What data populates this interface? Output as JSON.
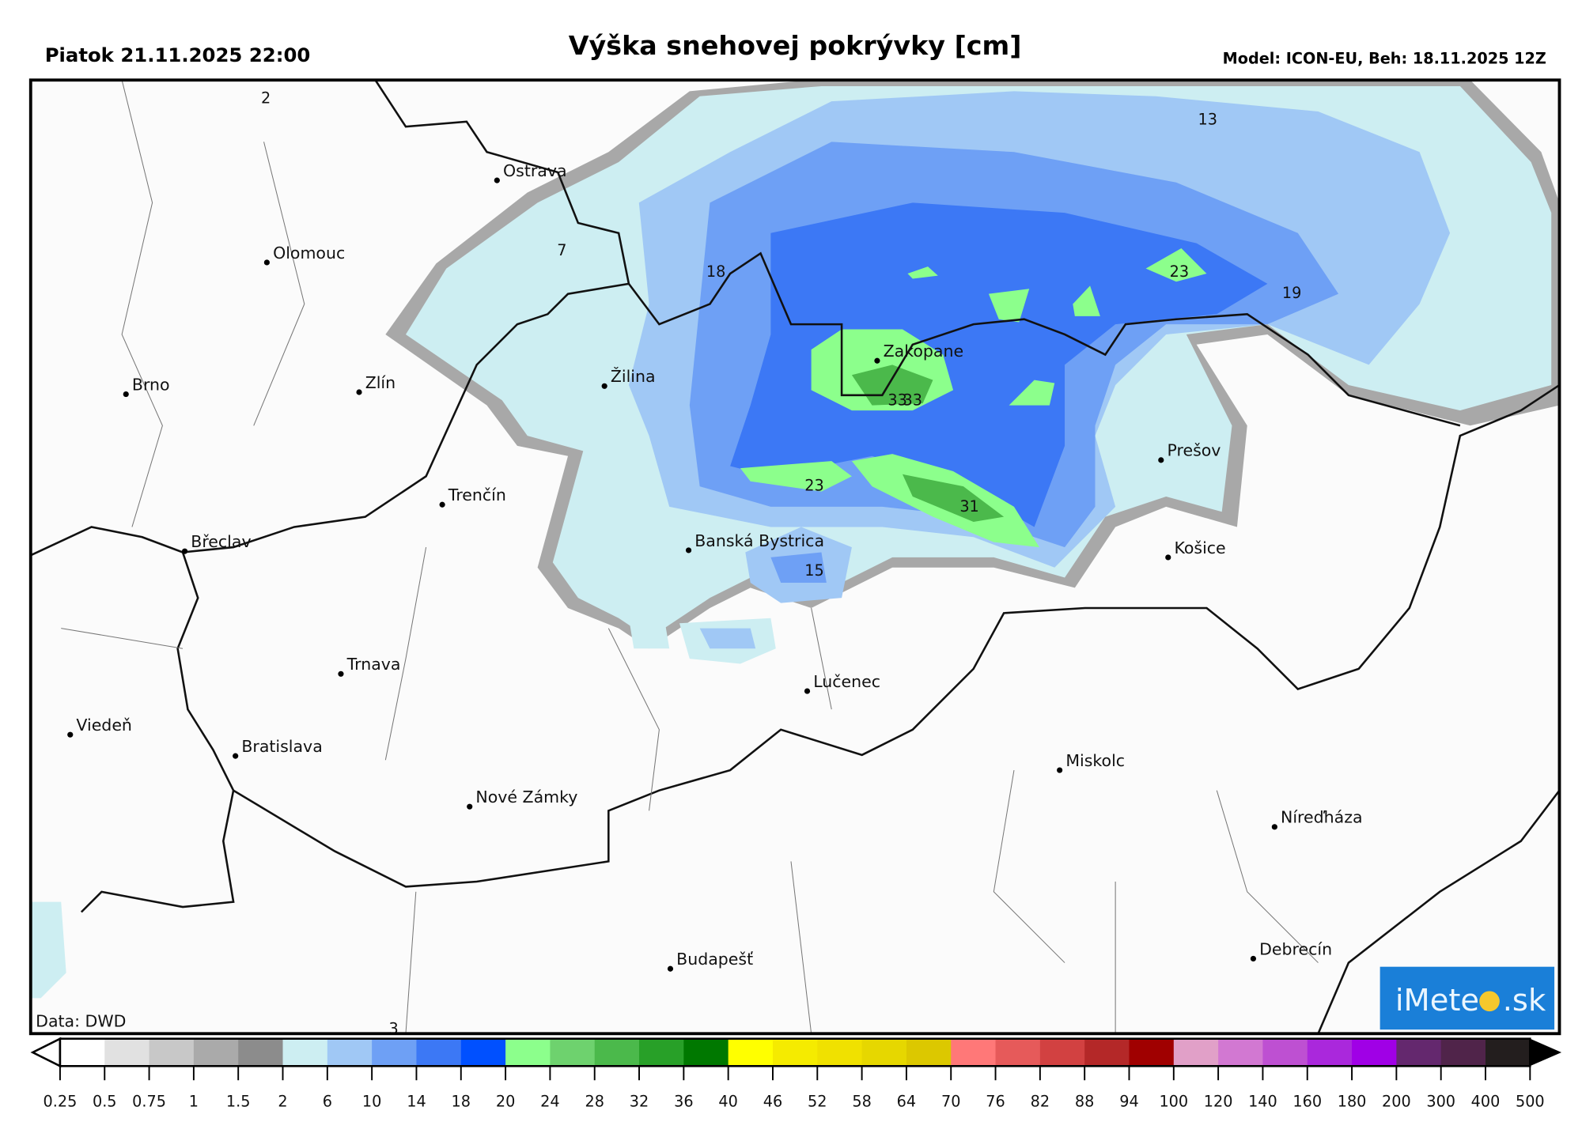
{
  "header": {
    "date_label": "Piatok 21.11.2025 22:00",
    "title": "Výška snehovej pokrývky [cm]",
    "model_label": "Model: ICON-EU, Beh: 18.11.2025 12Z"
  },
  "map": {
    "source_label": "Data: DWD",
    "logo_text": "iMeteo.sk",
    "cities": [
      {
        "name": "Ostrava"
      },
      {
        "name": "Olomouc"
      },
      {
        "name": "Brno"
      },
      {
        "name": "Zlín"
      },
      {
        "name": "Žilina"
      },
      {
        "name": "Trenčín"
      },
      {
        "name": "Břeclav"
      },
      {
        "name": "Banská Bystrica"
      },
      {
        "name": "Zakopane"
      },
      {
        "name": "Prešov"
      },
      {
        "name": "Košice"
      },
      {
        "name": "Lučenec"
      },
      {
        "name": "Trnava"
      },
      {
        "name": "Viedeň"
      },
      {
        "name": "Bratislava"
      },
      {
        "name": "Nové Zámky"
      },
      {
        "name": "Miskolc"
      },
      {
        "name": "Níreďháza"
      },
      {
        "name": "Budapešť"
      },
      {
        "name": "Debrecín"
      }
    ],
    "value_labels": [
      "2",
      "13",
      "7",
      "18",
      "23",
      "19",
      "33",
      "33",
      "23",
      "31",
      "15",
      "3"
    ]
  },
  "legend": {
    "ticks": [
      "0.25",
      "0.5",
      "0.75",
      "1",
      "1.5",
      "2",
      "6",
      "10",
      "14",
      "18",
      "20",
      "24",
      "28",
      "32",
      "36",
      "40",
      "46",
      "52",
      "58",
      "64",
      "70",
      "76",
      "82",
      "88",
      "94",
      "100",
      "120",
      "140",
      "160",
      "180",
      "200",
      "300",
      "400",
      "500"
    ],
    "colors": [
      "#ffffff",
      "#e1e1e1",
      "#c8c8c8",
      "#aaaaaa",
      "#8c8c8c",
      "#cdeef2",
      "#a0c8f5",
      "#6ea0f5",
      "#3c78f5",
      "#0050ff",
      "#8cff8c",
      "#6ed26e",
      "#4bb94b",
      "#28a028",
      "#007800",
      "#ffff00",
      "#f5eb00",
      "#f0e100",
      "#e6d700",
      "#dcc800",
      "#ff7878",
      "#e65a5a",
      "#d24141",
      "#b42828",
      "#a00000",
      "#e1a0c8",
      "#d278d2",
      "#be50d2",
      "#aa28dc",
      "#a000e6",
      "#64286e",
      "#50244a",
      "#231e1e"
    ]
  }
}
